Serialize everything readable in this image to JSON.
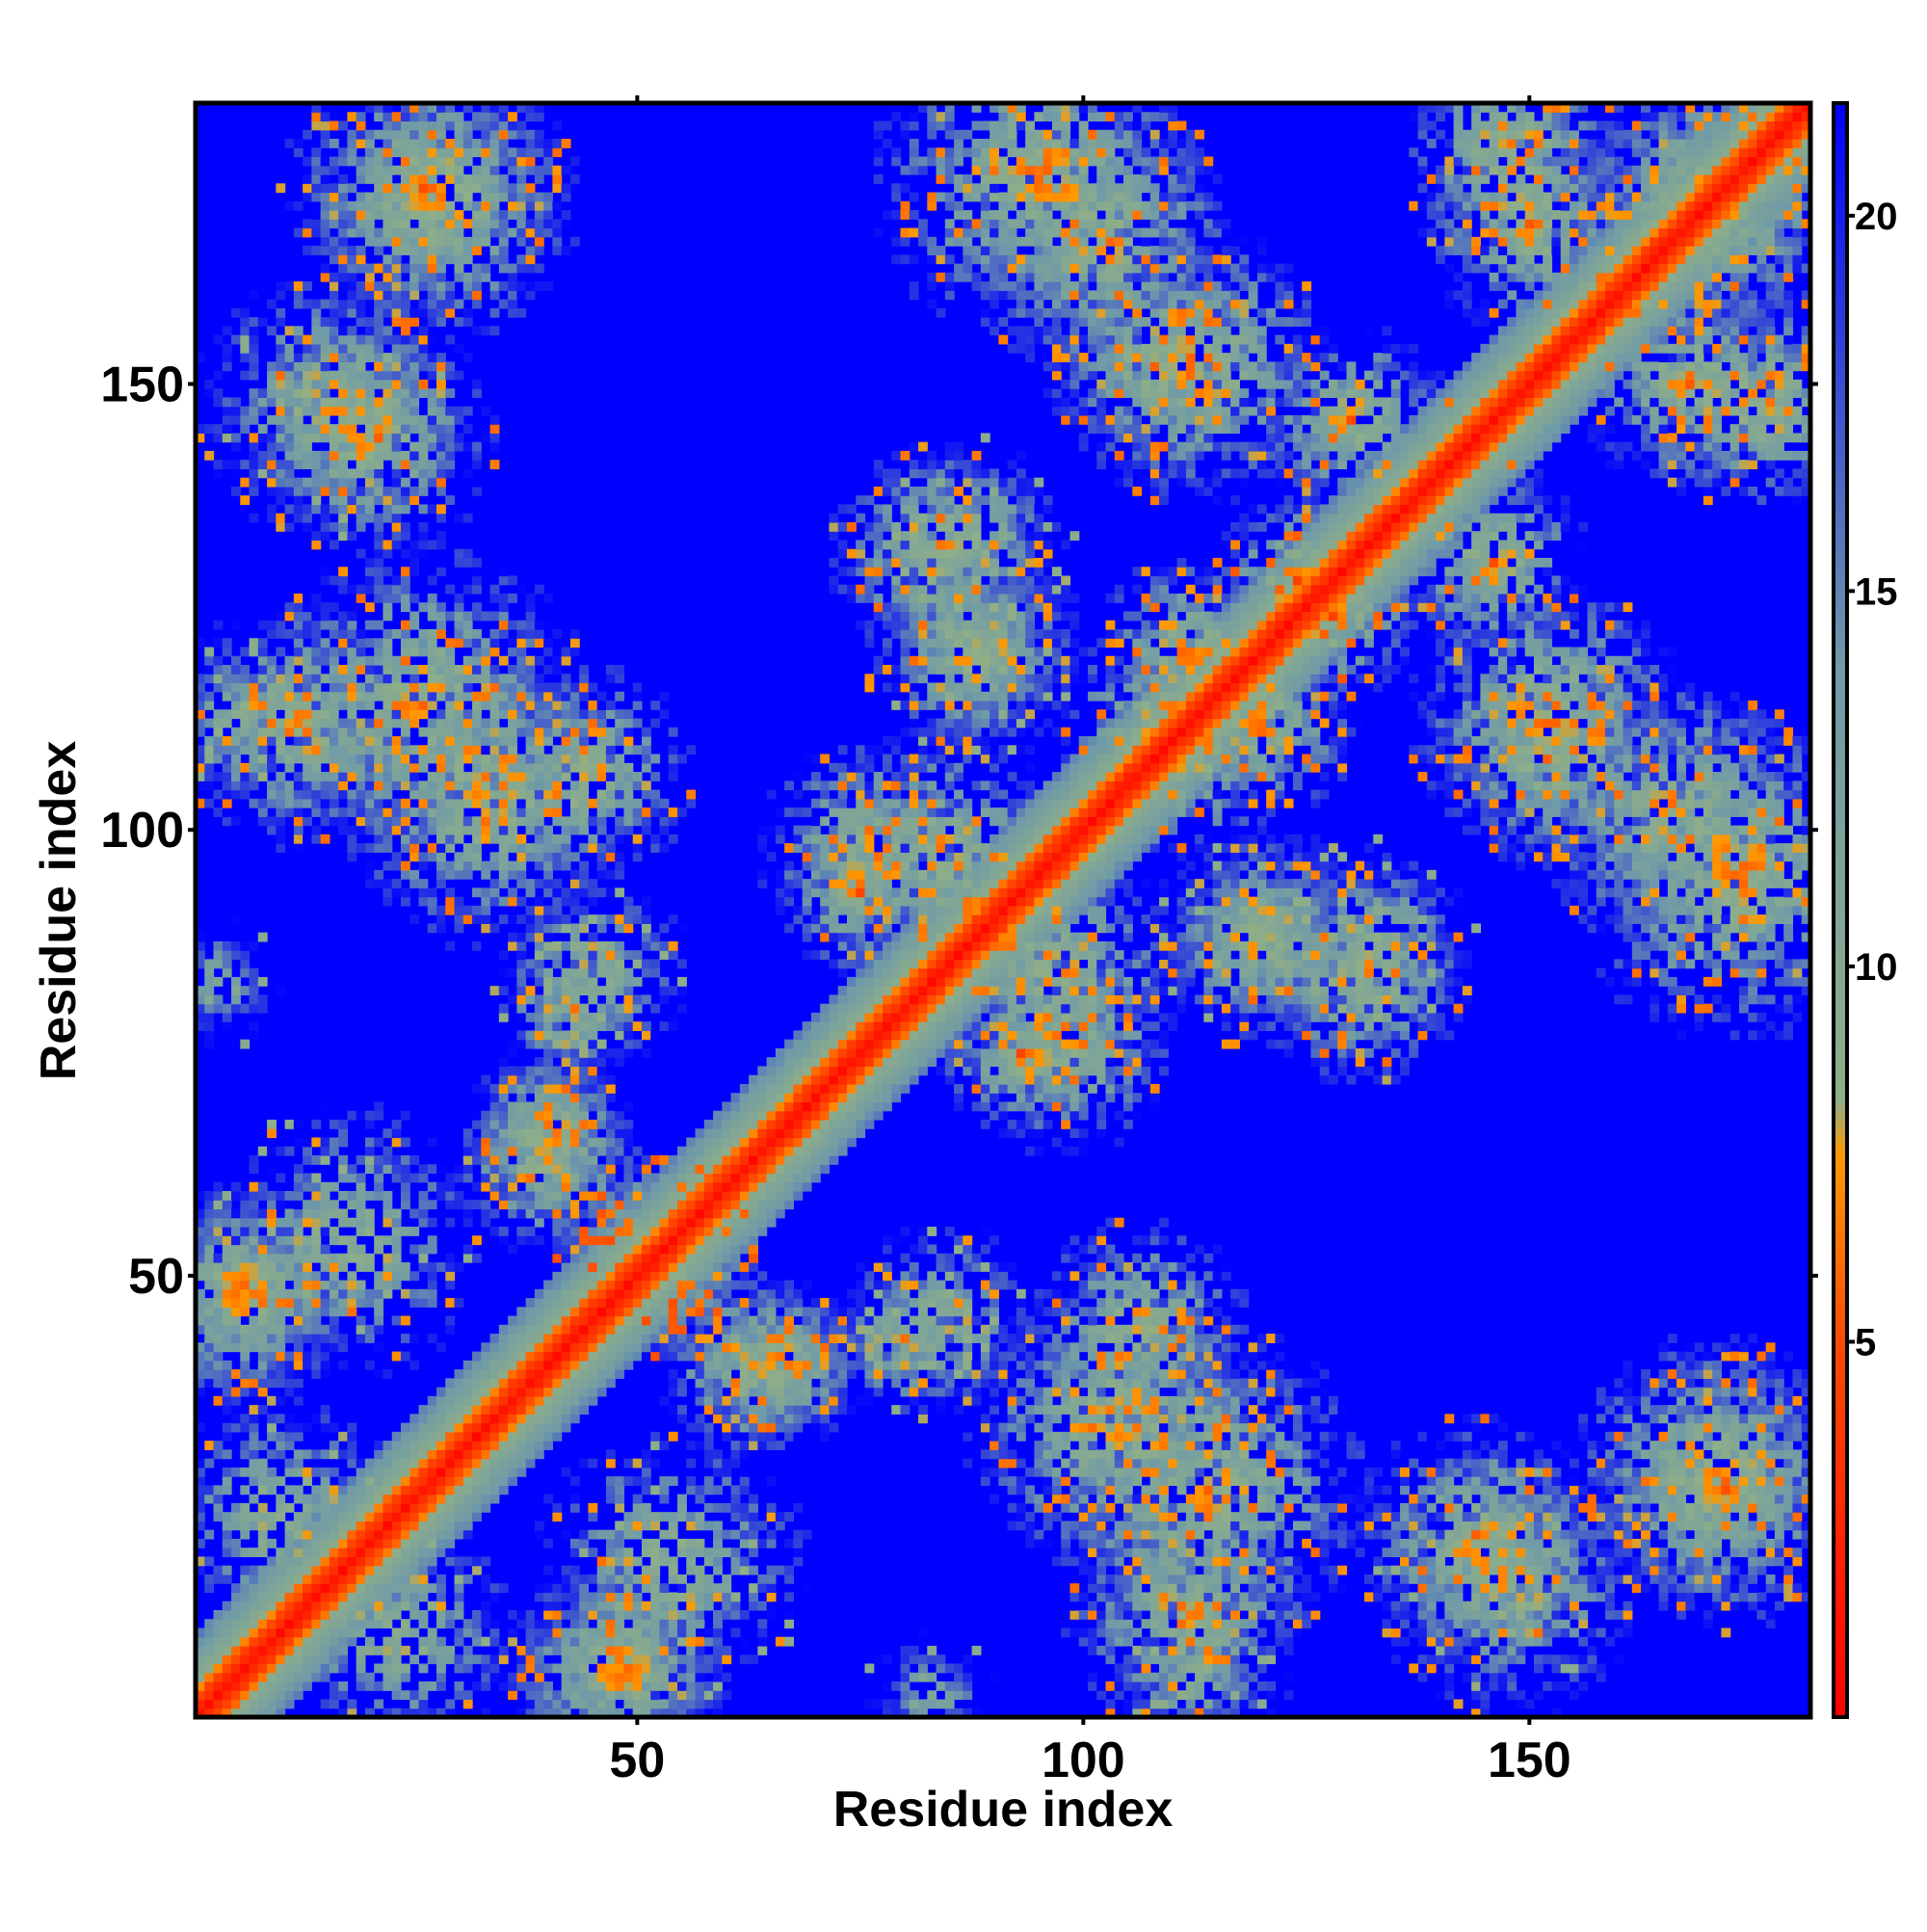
{
  "chart_data": {
    "type": "heatmap",
    "title": "",
    "xlabel": "Residue index",
    "ylabel": "Residue index",
    "n_residues": 181,
    "xlim": [
      1,
      181
    ],
    "ylim": [
      1,
      181
    ],
    "x_ticks": [
      50,
      100,
      150
    ],
    "y_ticks": [
      50,
      100,
      150
    ],
    "x_tick_labels": [
      "50",
      "100",
      "150"
    ],
    "y_tick_labels": [
      "50",
      "100",
      "150"
    ],
    "colorbar": {
      "range": [
        0,
        21.5
      ],
      "ticks": [
        5,
        10,
        15,
        20
      ],
      "tick_labels": [
        "5",
        "10",
        "15",
        "20"
      ],
      "stops": [
        {
          "value": 0,
          "color": "#ff0000"
        },
        {
          "value": 5,
          "color": "#ff4a00"
        },
        {
          "value": 7.5,
          "color": "#ff9900"
        },
        {
          "value": 8.2,
          "color": "#8fae88"
        },
        {
          "value": 14,
          "color": "#6f9aa8"
        },
        {
          "value": 21.5,
          "color": "#0000ff"
        }
      ]
    },
    "background_value": 21.5,
    "diagonal_band": {
      "value_at_diagonal": 1,
      "half_width_residues": 3
    },
    "contact_clusters": [
      {
        "center": [
          52,
          52
        ],
        "radius": 7,
        "min_value": 5
      },
      {
        "center": [
          40,
          66
        ],
        "radius": 6,
        "min_value": 6
      },
      {
        "center": [
          66,
          40
        ],
        "radius": 6,
        "min_value": 6
      },
      {
        "center": [
          48,
          6
        ],
        "radius": 8,
        "min_value": 6
      },
      {
        "center": [
          6,
          48
        ],
        "radius": 8,
        "min_value": 6
      },
      {
        "center": [
          26,
          114
        ],
        "radius": 12,
        "min_value": 6
      },
      {
        "center": [
          44,
          106
        ],
        "radius": 8,
        "min_value": 6
      },
      {
        "center": [
          45,
          84
        ],
        "radius": 7,
        "min_value": 7
      },
      {
        "center": [
          26,
          172
        ],
        "radius": 10,
        "min_value": 6
      },
      {
        "center": [
          16,
          148
        ],
        "radius": 10,
        "min_value": 7
      },
      {
        "center": [
          5,
          113
        ],
        "radius": 6,
        "min_value": 8
      },
      {
        "center": [
          3,
          83
        ],
        "radius": 5,
        "min_value": 9
      },
      {
        "center": [
          10,
          23
        ],
        "radius": 9,
        "min_value": 7
      },
      {
        "center": [
          54,
          18
        ],
        "radius": 10,
        "min_value": 7
      },
      {
        "center": [
          63,
          40
        ],
        "radius": 7,
        "min_value": 6
      },
      {
        "center": [
          80,
          43
        ],
        "radius": 6,
        "min_value": 7
      },
      {
        "center": [
          104,
          33
        ],
        "radius": 11,
        "min_value": 6
      },
      {
        "center": [
          112,
          12
        ],
        "radius": 9,
        "min_value": 6
      },
      {
        "center": [
          84,
          131
        ],
        "radius": 8,
        "min_value": 6
      },
      {
        "center": [
          95,
          173
        ],
        "radius": 12,
        "min_value": 6
      },
      {
        "center": [
          108,
          153
        ],
        "radius": 8,
        "min_value": 6
      },
      {
        "center": [
          108,
          112
        ],
        "radius": 7,
        "min_value": 6
      },
      {
        "center": [
          98,
          76
        ],
        "radius": 8,
        "min_value": 6
      },
      {
        "center": [
          84,
          97
        ],
        "radius": 9,
        "min_value": 6
      },
      {
        "center": [
          75,
          93
        ],
        "radius": 6,
        "min_value": 6
      },
      {
        "center": [
          124,
          128
        ],
        "radius": 6,
        "min_value": 5
      },
      {
        "center": [
          112,
          120
        ],
        "radius": 7,
        "min_value": 6
      },
      {
        "center": [
          120,
          88
        ],
        "radius": 8,
        "min_value": 7
      },
      {
        "center": [
          152,
          113
        ],
        "radius": 10,
        "min_value": 6
      },
      {
        "center": [
          166,
          102
        ],
        "radius": 10,
        "min_value": 6
      },
      {
        "center": [
          148,
          176
        ],
        "radius": 8,
        "min_value": 6
      },
      {
        "center": [
          170,
          170
        ],
        "radius": 10,
        "min_value": 6
      },
      {
        "center": [
          168,
          150
        ],
        "radius": 8,
        "min_value": 6
      },
      {
        "center": [
          146,
          130
        ],
        "radius": 7,
        "min_value": 6
      },
      {
        "center": [
          170,
          28
        ],
        "radius": 10,
        "min_value": 6
      },
      {
        "center": [
          144,
          20
        ],
        "radius": 9,
        "min_value": 6
      },
      {
        "center": [
          133,
          88
        ],
        "radius": 7,
        "min_value": 8
      },
      {
        "center": [
          88,
          120
        ],
        "radius": 8,
        "min_value": 7
      }
    ]
  }
}
